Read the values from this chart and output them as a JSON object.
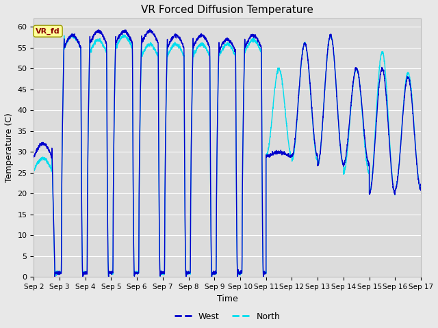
{
  "title": "VR Forced Diffusion Temperature",
  "ylabel": "Temperature (C)",
  "xlabel": "Time",
  "ylim": [
    0,
    62
  ],
  "yticks": [
    0,
    5,
    10,
    15,
    20,
    25,
    30,
    35,
    40,
    45,
    50,
    55,
    60
  ],
  "west_color": "#0000CC",
  "north_color": "#00DDEE",
  "background_color": "#E8E8E8",
  "plot_bg_color": "#DCDCDC",
  "label_box_color": "#FFFF99",
  "label_text_color": "#8B0000",
  "label_text": "VR_fd",
  "legend_west": "West",
  "legend_north": "North",
  "title_fontsize": 11,
  "axis_label_fontsize": 9,
  "tick_fontsize": 8
}
